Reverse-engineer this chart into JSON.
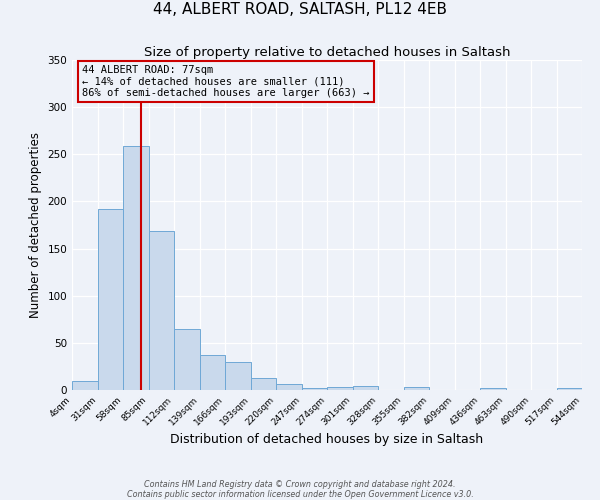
{
  "title": "44, ALBERT ROAD, SALTASH, PL12 4EB",
  "subtitle": "Size of property relative to detached houses in Saltash",
  "xlabel": "Distribution of detached houses by size in Saltash",
  "ylabel": "Number of detached properties",
  "bin_edges": [
    4,
    31,
    58,
    85,
    112,
    139,
    166,
    193,
    220,
    247,
    274,
    301,
    328,
    355,
    382,
    409,
    436,
    463,
    490,
    517,
    544
  ],
  "bar_heights": [
    10,
    192,
    259,
    169,
    65,
    37,
    30,
    13,
    6,
    2,
    3,
    4,
    0,
    3,
    0,
    0,
    2,
    0,
    0,
    2
  ],
  "bar_color": "#c9d9ec",
  "bar_edge_color": "#6fa8d6",
  "vline_x": 77,
  "vline_color": "#cc0000",
  "ylim": [
    0,
    350
  ],
  "yticks": [
    0,
    50,
    100,
    150,
    200,
    250,
    300,
    350
  ],
  "annotation_title": "44 ALBERT ROAD: 77sqm",
  "annotation_line1": "← 14% of detached houses are smaller (111)",
  "annotation_line2": "86% of semi-detached houses are larger (663) →",
  "annotation_box_color": "#cc0000",
  "footer_line1": "Contains HM Land Registry data © Crown copyright and database right 2024.",
  "footer_line2": "Contains public sector information licensed under the Open Government Licence v3.0.",
  "bg_color": "#eef2f9",
  "title_fontsize": 11,
  "subtitle_fontsize": 9.5,
  "xlabel_fontsize": 9,
  "ylabel_fontsize": 8.5,
  "tick_labels": [
    "4sqm",
    "31sqm",
    "58sqm",
    "85sqm",
    "112sqm",
    "139sqm",
    "166sqm",
    "193sqm",
    "220sqm",
    "247sqm",
    "274sqm",
    "301sqm",
    "328sqm",
    "355sqm",
    "382sqm",
    "409sqm",
    "436sqm",
    "463sqm",
    "490sqm",
    "517sqm",
    "544sqm"
  ]
}
